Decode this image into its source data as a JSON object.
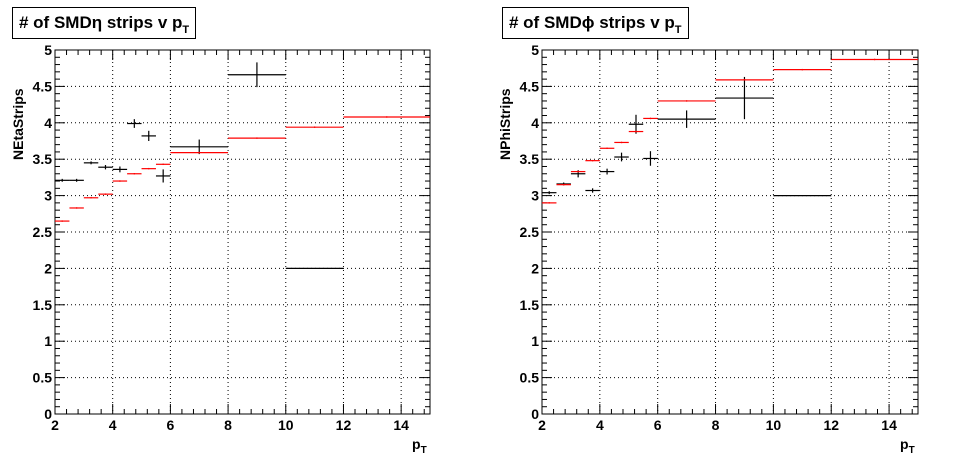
{
  "chart_data": [
    {
      "type": "scatter",
      "title": "# of SMDη strips v p",
      "title_sub": "T",
      "xlabel": "p",
      "xlabel_sub": "T",
      "ylabel": "NEtaStrips",
      "xlim": [
        2,
        15
      ],
      "ylim": [
        0,
        5
      ],
      "xticks": [
        "2",
        "4",
        "6",
        "8",
        "10",
        "12",
        "14"
      ],
      "yticks": [
        "0",
        "0.5",
        "1",
        "1.5",
        "2",
        "2.5",
        "3",
        "3.5",
        "4",
        "4.5",
        "5"
      ],
      "series": [
        {
          "name": "black",
          "color": "#000000",
          "points": [
            {
              "xlo": 2.0,
              "xhi": 2.5,
              "y": 3.21,
              "err": 0.02
            },
            {
              "xlo": 2.5,
              "xhi": 3.0,
              "y": 3.21,
              "err": 0.02
            },
            {
              "xlo": 3.0,
              "xhi": 3.5,
              "y": 3.45,
              "err": 0.02
            },
            {
              "xlo": 3.5,
              "xhi": 4.0,
              "y": 3.39,
              "err": 0.03
            },
            {
              "xlo": 4.0,
              "xhi": 4.5,
              "y": 3.36,
              "err": 0.04
            },
            {
              "xlo": 4.5,
              "xhi": 5.0,
              "y": 3.99,
              "err": 0.06
            },
            {
              "xlo": 5.0,
              "xhi": 5.5,
              "y": 3.82,
              "err": 0.07
            },
            {
              "xlo": 5.5,
              "xhi": 6.0,
              "y": 3.27,
              "err": 0.09
            },
            {
              "xlo": 6.0,
              "xhi": 8.0,
              "y": 3.67,
              "err": 0.1
            },
            {
              "xlo": 8.0,
              "xhi": 10.0,
              "y": 4.66,
              "err": 0.17
            },
            {
              "xlo": 10.0,
              "xhi": 12.0,
              "y": 2.0,
              "err": 0.0
            }
          ]
        },
        {
          "name": "red",
          "color": "#ff0000",
          "points": [
            {
              "xlo": 2.0,
              "xhi": 2.5,
              "y": 2.65,
              "err": 0.01
            },
            {
              "xlo": 2.5,
              "xhi": 3.0,
              "y": 2.83,
              "err": 0.01
            },
            {
              "xlo": 3.0,
              "xhi": 3.5,
              "y": 2.97,
              "err": 0.01
            },
            {
              "xlo": 3.5,
              "xhi": 4.0,
              "y": 3.02,
              "err": 0.01
            },
            {
              "xlo": 4.0,
              "xhi": 4.5,
              "y": 3.2,
              "err": 0.01
            },
            {
              "xlo": 4.5,
              "xhi": 5.0,
              "y": 3.3,
              "err": 0.01
            },
            {
              "xlo": 5.0,
              "xhi": 5.5,
              "y": 3.37,
              "err": 0.01
            },
            {
              "xlo": 5.5,
              "xhi": 6.0,
              "y": 3.43,
              "err": 0.01
            },
            {
              "xlo": 6.0,
              "xhi": 8.0,
              "y": 3.59,
              "err": 0.01
            },
            {
              "xlo": 8.0,
              "xhi": 10.0,
              "y": 3.79,
              "err": 0.01
            },
            {
              "xlo": 10.0,
              "xhi": 12.0,
              "y": 3.94,
              "err": 0.01
            },
            {
              "xlo": 12.0,
              "xhi": 15.0,
              "y": 4.08,
              "err": 0.01
            }
          ]
        }
      ]
    },
    {
      "type": "scatter",
      "title": "# of SMDϕ strips v p",
      "title_sub": "T",
      "xlabel": "p",
      "xlabel_sub": "T",
      "ylabel": "NPhiStrips",
      "xlim": [
        2,
        15
      ],
      "ylim": [
        0,
        5
      ],
      "xticks": [
        "2",
        "4",
        "6",
        "8",
        "10",
        "12",
        "14"
      ],
      "yticks": [
        "0",
        "0.5",
        "1",
        "1.5",
        "2",
        "2.5",
        "3",
        "3.5",
        "4",
        "4.5",
        "5"
      ],
      "series": [
        {
          "name": "black",
          "color": "#000000",
          "points": [
            {
              "xlo": 2.0,
              "xhi": 2.5,
              "y": 3.04,
              "err": 0.02
            },
            {
              "xlo": 2.5,
              "xhi": 3.0,
              "y": 3.16,
              "err": 0.02
            },
            {
              "xlo": 3.0,
              "xhi": 3.5,
              "y": 3.3,
              "err": 0.05
            },
            {
              "xlo": 3.5,
              "xhi": 4.0,
              "y": 3.07,
              "err": 0.03
            },
            {
              "xlo": 4.0,
              "xhi": 4.5,
              "y": 3.33,
              "err": 0.04
            },
            {
              "xlo": 4.5,
              "xhi": 5.0,
              "y": 3.53,
              "err": 0.06
            },
            {
              "xlo": 5.0,
              "xhi": 5.5,
              "y": 3.98,
              "err": 0.13
            },
            {
              "xlo": 5.5,
              "xhi": 6.0,
              "y": 3.51,
              "err": 0.1
            },
            {
              "xlo": 6.0,
              "xhi": 8.0,
              "y": 4.05,
              "err": 0.12
            },
            {
              "xlo": 8.0,
              "xhi": 10.0,
              "y": 4.34,
              "err": 0.29
            },
            {
              "xlo": 10.0,
              "xhi": 12.0,
              "y": 3.0,
              "err": 0.0
            }
          ]
        },
        {
          "name": "red",
          "color": "#ff0000",
          "points": [
            {
              "xlo": 2.0,
              "xhi": 2.5,
              "y": 2.9,
              "err": 0.01
            },
            {
              "xlo": 2.5,
              "xhi": 3.0,
              "y": 3.15,
              "err": 0.01
            },
            {
              "xlo": 3.0,
              "xhi": 3.5,
              "y": 3.33,
              "err": 0.01
            },
            {
              "xlo": 3.5,
              "xhi": 4.0,
              "y": 3.48,
              "err": 0.01
            },
            {
              "xlo": 4.0,
              "xhi": 4.5,
              "y": 3.65,
              "err": 0.01
            },
            {
              "xlo": 4.5,
              "xhi": 5.0,
              "y": 3.73,
              "err": 0.01
            },
            {
              "xlo": 5.0,
              "xhi": 5.5,
              "y": 3.88,
              "err": 0.01
            },
            {
              "xlo": 5.5,
              "xhi": 6.0,
              "y": 4.06,
              "err": 0.01
            },
            {
              "xlo": 6.0,
              "xhi": 8.0,
              "y": 4.3,
              "err": 0.01
            },
            {
              "xlo": 8.0,
              "xhi": 10.0,
              "y": 4.59,
              "err": 0.01
            },
            {
              "xlo": 10.0,
              "xhi": 12.0,
              "y": 4.73,
              "err": 0.01
            },
            {
              "xlo": 12.0,
              "xhi": 15.0,
              "y": 4.87,
              "err": 0.01
            }
          ]
        }
      ]
    }
  ]
}
